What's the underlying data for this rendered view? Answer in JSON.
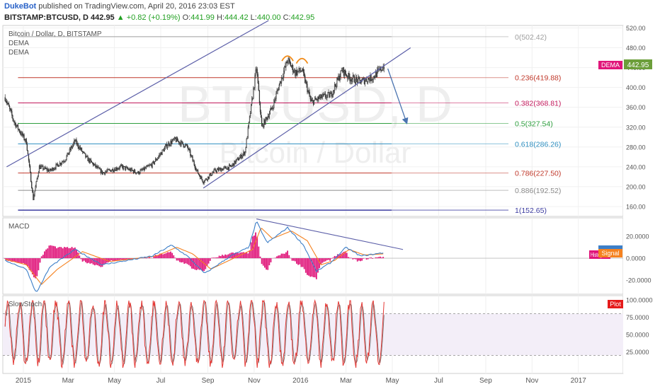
{
  "header": {
    "author": "DukeBot",
    "published": "published on TradingView.com, April 20, 2016 23:03 EST",
    "symbol": "BITSTAMP:BTCUSD, D",
    "price": "442.95",
    "change": "▲ +0.82 (+0.19%)",
    "o_label": "O:",
    "o": "441.99",
    "h_label": "H:",
    "h": "444.42",
    "l_label": "L:",
    "l": "440.00",
    "c_label": "C:",
    "c": "442.95"
  },
  "main_pane": {
    "legend": [
      "Bitcoin / Dollar, D, BITSTAMP",
      "DEMA",
      "DEMA"
    ],
    "watermark_symbol": "BTCUSD, D",
    "watermark_name": "Bitcoin / Dollar",
    "price_tag": "442.95",
    "dema_tag": "DEMA"
  },
  "macd_pane": {
    "legend": "MACD",
    "tag_hist": "Histogram",
    "tag_signal": "Signal"
  },
  "stoch_pane": {
    "legend": "SlowStoch",
    "tag_plot": "Plot"
  },
  "colors": {
    "candle": "#333333",
    "channel": "#5b5ea8",
    "arrow": "#4a74b0",
    "macd_line": "#3d7fc8",
    "signal_line": "#f58220",
    "histogram": "#e0157a",
    "stoch_k": "#e53935",
    "stoch_d": "#777777",
    "stoch_band": "#f3eef8"
  },
  "chart_data": [
    {
      "type": "candlestick",
      "title": "Bitcoin / Dollar, D, BITSTAMP",
      "x_ticks": [
        "2015",
        "Mar",
        "May",
        "Jul",
        "Sep",
        "Nov",
        "2016",
        "Mar",
        "May",
        "Jul",
        "Sep",
        "Nov",
        "2017"
      ],
      "y_ticks": [
        160,
        200,
        240,
        280,
        320,
        360,
        400,
        440,
        480,
        520
      ],
      "y_tick_labels": [
        "160.00",
        "200.00",
        "240.00",
        "280.00",
        "320.00",
        "360.00",
        "400.00",
        "440.00",
        "480.00",
        "520.00"
      ],
      "ylim": [
        140,
        525
      ],
      "last_price": 442.95,
      "price_path": [
        [
          "2014-12-08",
          380
        ],
        [
          "2014-12-20",
          330
        ],
        [
          "2015-01-05",
          290
        ],
        [
          "2015-01-14",
          175
        ],
        [
          "2015-01-22",
          240
        ],
        [
          "2015-02-05",
          232
        ],
        [
          "2015-02-25",
          255
        ],
        [
          "2015-03-10",
          292
        ],
        [
          "2015-03-25",
          258
        ],
        [
          "2015-04-15",
          228
        ],
        [
          "2015-05-10",
          240
        ],
        [
          "2015-06-01",
          228
        ],
        [
          "2015-06-20",
          245
        ],
        [
          "2015-07-10",
          285
        ],
        [
          "2015-07-20",
          295
        ],
        [
          "2015-08-05",
          280
        ],
        [
          "2015-08-18",
          230
        ],
        [
          "2015-08-26",
          210
        ],
        [
          "2015-09-10",
          232
        ],
        [
          "2015-10-01",
          240
        ],
        [
          "2015-10-20",
          270
        ],
        [
          "2015-11-04",
          440
        ],
        [
          "2015-11-11",
          320
        ],
        [
          "2015-11-25",
          360
        ],
        [
          "2015-12-05",
          410
        ],
        [
          "2015-12-15",
          455
        ],
        [
          "2015-12-25",
          430
        ],
        [
          "2016-01-03",
          435
        ],
        [
          "2016-01-15",
          370
        ],
        [
          "2016-01-28",
          380
        ],
        [
          "2016-02-10",
          385
        ],
        [
          "2016-02-25",
          435
        ],
        [
          "2016-03-05",
          420
        ],
        [
          "2016-03-20",
          412
        ],
        [
          "2016-04-05",
          420
        ],
        [
          "2016-04-20",
          442.95
        ]
      ],
      "fibonacci_levels": [
        {
          "ratio": "0",
          "price": 502.42,
          "label": "0(502.42)",
          "color": "#9e9e9e"
        },
        {
          "ratio": "0.236",
          "price": 419.88,
          "label": "0.236(419.88)",
          "color": "#c0392b"
        },
        {
          "ratio": "0.382",
          "price": 368.81,
          "label": "0.382(368.81)",
          "color": "#c2185b"
        },
        {
          "ratio": "0.5",
          "price": 327.54,
          "label": "0.5(327.54)",
          "color": "#2e9e3e"
        },
        {
          "ratio": "0.618",
          "price": 286.26,
          "label": "0.618(286.26)",
          "color": "#2f8fc0"
        },
        {
          "ratio": "0.786",
          "price": 227.5,
          "label": "0.786(227.50)",
          "color": "#c0392b"
        },
        {
          "ratio": "0.886",
          "price": 192.52,
          "label": "0.886(192.52)",
          "color": "#8a8a8a"
        },
        {
          "ratio": "1",
          "price": 152.65,
          "label": "1(152.65)",
          "color": "#3c3ca0"
        }
      ],
      "annotations": {
        "upper_channel": [
          [
            "2014-12-10",
            240
          ],
          [
            "2015-11-20",
            535
          ]
        ],
        "lower_channel": [
          [
            "2015-08-26",
            197
          ],
          [
            "2016-05-25",
            480
          ]
        ],
        "projection_arrow": [
          [
            "2016-04-25",
            438
          ],
          [
            "2016-05-20",
            328
          ]
        ],
        "head_shoulders_arcs": [
          [
            "2015-12-15",
            462
          ],
          [
            "2016-01-03",
            457
          ]
        ]
      },
      "grid": true
    },
    {
      "type": "line",
      "title": "MACD",
      "y_ticks": [
        20,
        0,
        -20
      ],
      "y_tick_labels": [
        "20.0000",
        "0.0000",
        "-20.0000"
      ],
      "ylim": [
        -33,
        37
      ],
      "series": [
        {
          "name": "MACD",
          "color": "#3d7fc8",
          "path": [
            [
              "2014-12-08",
              -2
            ],
            [
              "2015-01-05",
              -10
            ],
            [
              "2015-01-18",
              -32
            ],
            [
              "2015-02-05",
              -8
            ],
            [
              "2015-03-10",
              8
            ],
            [
              "2015-04-15",
              -6
            ],
            [
              "2015-06-20",
              2
            ],
            [
              "2015-07-15",
              12
            ],
            [
              "2015-08-05",
              2
            ],
            [
              "2015-08-28",
              -14
            ],
            [
              "2015-10-01",
              2
            ],
            [
              "2015-10-25",
              10
            ],
            [
              "2015-11-04",
              34
            ],
            [
              "2015-11-18",
              14
            ],
            [
              "2015-12-15",
              28
            ],
            [
              "2016-01-05",
              12
            ],
            [
              "2016-01-22",
              -12
            ],
            [
              "2016-02-10",
              -4
            ],
            [
              "2016-03-01",
              10
            ],
            [
              "2016-03-20",
              2
            ],
            [
              "2016-04-20",
              5
            ]
          ]
        },
        {
          "name": "Signal",
          "color": "#f58220",
          "path": [
            [
              "2014-12-08",
              -1
            ],
            [
              "2015-01-05",
              -6
            ],
            [
              "2015-01-25",
              -24
            ],
            [
              "2015-02-15",
              -10
            ],
            [
              "2015-03-20",
              6
            ],
            [
              "2015-04-25",
              -3
            ],
            [
              "2015-06-25",
              2
            ],
            [
              "2015-07-22",
              10
            ],
            [
              "2015-08-12",
              4
            ],
            [
              "2015-09-05",
              -10
            ],
            [
              "2015-10-08",
              1
            ],
            [
              "2015-10-30",
              8
            ],
            [
              "2015-11-10",
              28
            ],
            [
              "2015-11-25",
              18
            ],
            [
              "2015-12-20",
              25
            ],
            [
              "2016-01-10",
              16
            ],
            [
              "2016-01-28",
              -6
            ],
            [
              "2016-02-15",
              -2
            ],
            [
              "2016-03-05",
              8
            ],
            [
              "2016-03-25",
              3
            ],
            [
              "2016-04-20",
              4
            ]
          ]
        }
      ],
      "annotations": {
        "divergence_line": [
          [
            "2015-11-04",
            36
          ],
          [
            "2016-05-15",
            8
          ]
        ]
      }
    },
    {
      "type": "line",
      "title": "SlowStoch",
      "y_ticks": [
        100,
        75,
        50,
        25
      ],
      "y_tick_labels": [
        "100.0000",
        "75.0000",
        "50.0000",
        "25.0000"
      ],
      "ylim": [
        0,
        100
      ],
      "bands": [
        20,
        80
      ],
      "series": [
        {
          "name": "Plot",
          "color": "#e53935",
          "last": 97
        }
      ]
    }
  ]
}
